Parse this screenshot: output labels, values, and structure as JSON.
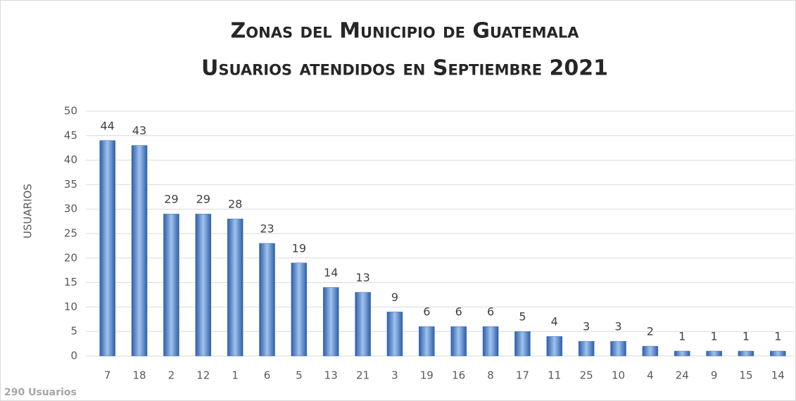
{
  "chart_data": {
    "type": "bar",
    "title": "Zonas del Municipio de Guatemala",
    "subtitle": "Usuarios atendidos en Septiembre 2021",
    "y_label": "USUARIOS",
    "annotation": "290 Usuarios",
    "categories": [
      "7",
      "18",
      "2",
      "12",
      "1",
      "6",
      "5",
      "13",
      "21",
      "3",
      "19",
      "16",
      "8",
      "17",
      "11",
      "25",
      "10",
      "4",
      "24",
      "9",
      "15",
      "14"
    ],
    "values": [
      44,
      43,
      29,
      29,
      28,
      23,
      19,
      14,
      13,
      9,
      6,
      6,
      6,
      5,
      4,
      3,
      3,
      2,
      1,
      1,
      1,
      1
    ],
    "color": "#4f81bd",
    "ylim": [
      0,
      50
    ],
    "yticks": [
      0,
      5,
      10,
      15,
      20,
      25,
      30,
      35,
      40,
      45,
      50
    ],
    "grid": true
  }
}
